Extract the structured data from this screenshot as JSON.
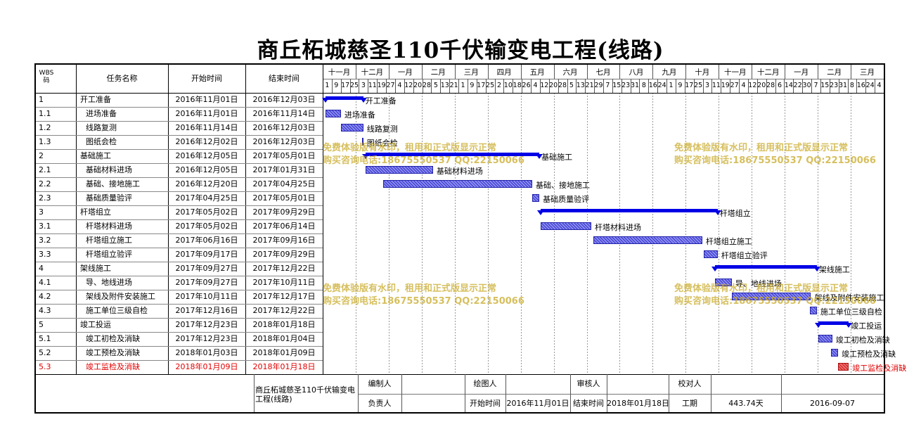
{
  "title": "商丘柘城慈圣110千伏输变电工程(线路)",
  "columns": {
    "wbs": "WBS码",
    "name": "任务名称",
    "start": "开始时间",
    "end": "结束时间"
  },
  "months": [
    "十一月",
    "十二月",
    "一月",
    "二月",
    "三月",
    "四月",
    "五月",
    "六月",
    "七月",
    "八月",
    "九月",
    "十月",
    "十一月",
    "十二月",
    "一月",
    "二月",
    "三月"
  ],
  "days": [
    "1",
    "9",
    "17",
    "25",
    "3",
    "11",
    "19",
    "27",
    "4",
    "12",
    "20",
    "28",
    "5",
    "13",
    "21",
    "1",
    "9",
    "17",
    "25",
    "2",
    "10",
    "18",
    "26",
    "4",
    "12",
    "20",
    "28",
    "5",
    "13",
    "21",
    "29",
    "7",
    "15",
    "23",
    "31",
    "8",
    "16",
    "24",
    "1",
    "9",
    "17",
    "25",
    "3",
    "11",
    "19",
    "27",
    "4",
    "12",
    "20",
    "28",
    "6",
    "14",
    "22",
    "30",
    "7",
    "15",
    "23",
    "31",
    "8",
    "16",
    "24",
    "4"
  ],
  "tasks": [
    {
      "wbs": "1",
      "name": "开工准备",
      "start": "2016年11月01日",
      "end": "2016年12月03日",
      "indent": 0,
      "kind": "summary",
      "s": 0,
      "e": 32
    },
    {
      "wbs": "1.1",
      "name": "进场准备",
      "start": "2016年11月01日",
      "end": "2016年11月14日",
      "indent": 1,
      "kind": "task",
      "s": 0,
      "e": 13
    },
    {
      "wbs": "1.2",
      "name": "线路复测",
      "start": "2016年11月14日",
      "end": "2016年12月03日",
      "indent": 1,
      "kind": "task",
      "s": 13,
      "e": 32
    },
    {
      "wbs": "1.3",
      "name": "图纸会检",
      "start": "2016年12月02日",
      "end": "2016年12月03日",
      "indent": 1,
      "kind": "milestone",
      "s": 31,
      "e": 32
    },
    {
      "wbs": "2",
      "name": "基础施工",
      "start": "2016年12月05日",
      "end": "2017年05月01日",
      "indent": 0,
      "kind": "summary",
      "s": 34,
      "e": 181
    },
    {
      "wbs": "2.1",
      "name": "基础材料进场",
      "start": "2016年12月05日",
      "end": "2017年01月31日",
      "indent": 1,
      "kind": "task",
      "s": 34,
      "e": 91
    },
    {
      "wbs": "2.2",
      "name": "基础、接地施工",
      "start": "2016年12月20日",
      "end": "2017年04月25日",
      "indent": 1,
      "kind": "task",
      "s": 49,
      "e": 175
    },
    {
      "wbs": "2.3",
      "name": "基础质量验评",
      "start": "2017年04月25日",
      "end": "2017年05月01日",
      "indent": 1,
      "kind": "task",
      "s": 175,
      "e": 181
    },
    {
      "wbs": "3",
      "name": "杆塔组立",
      "start": "2017年05月02日",
      "end": "2017年09月29日",
      "indent": 0,
      "kind": "summary",
      "s": 182,
      "e": 332
    },
    {
      "wbs": "3.1",
      "name": "杆塔材料进场",
      "start": "2017年05月02日",
      "end": "2017年06月14日",
      "indent": 1,
      "kind": "task",
      "s": 182,
      "e": 225
    },
    {
      "wbs": "3.2",
      "name": "杆塔组立施工",
      "start": "2017年06月16日",
      "end": "2017年09月16日",
      "indent": 1,
      "kind": "task",
      "s": 227,
      "e": 319
    },
    {
      "wbs": "3.3",
      "name": "杆塔组立验评",
      "start": "2017年09月17日",
      "end": "2017年09月29日",
      "indent": 1,
      "kind": "task",
      "s": 320,
      "e": 332
    },
    {
      "wbs": "4",
      "name": "架线施工",
      "start": "2017年09月27日",
      "end": "2017年12月22日",
      "indent": 0,
      "kind": "summary",
      "s": 330,
      "e": 416
    },
    {
      "wbs": "4.1",
      "name": "导、地线进场",
      "start": "2017年09月27日",
      "end": "2017年10月11日",
      "indent": 1,
      "kind": "task",
      "s": 330,
      "e": 344
    },
    {
      "wbs": "4.2",
      "name": "架线及附件安装施工",
      "start": "2017年10月11日",
      "end": "2017年12月17日",
      "indent": 1,
      "kind": "task",
      "s": 344,
      "e": 411
    },
    {
      "wbs": "4.3",
      "name": "施工单位三级自检",
      "start": "2017年12月16日",
      "end": "2017年12月22日",
      "indent": 1,
      "kind": "task",
      "s": 410,
      "e": 416
    },
    {
      "wbs": "5",
      "name": "竣工投运",
      "start": "2017年12月23日",
      "end": "2018年01月18日",
      "indent": 0,
      "kind": "summary",
      "s": 417,
      "e": 443
    },
    {
      "wbs": "5.1",
      "name": "竣工初检及消缺",
      "start": "2017年12月23日",
      "end": "2018年01月04日",
      "indent": 1,
      "kind": "task",
      "s": 417,
      "e": 429
    },
    {
      "wbs": "5.2",
      "name": "竣工预检及消缺",
      "start": "2018年01月03日",
      "end": "2018年01月09日",
      "indent": 1,
      "kind": "task",
      "s": 428,
      "e": 434
    },
    {
      "wbs": "5.3",
      "name": "竣工监检及消缺",
      "start": "2018年01月09日",
      "end": "2018年01月18日",
      "indent": 1,
      "kind": "critical",
      "s": 434,
      "e": 443
    }
  ],
  "footer": {
    "project": "商丘柘城慈圣110千伏输变电工程(线路)",
    "compiler_label": "编制人",
    "drawer_label": "绘图人",
    "reviewer_label": "审核人",
    "checker_label": "校对人",
    "owner_label": "负责人",
    "start_label": "开始时间",
    "start_value": "2016年11月01日",
    "end_label": "结束时间",
    "end_value": "2018年01月18日",
    "duration_label": "工期",
    "duration_value": "443.74天",
    "date": "2016-09-07"
  },
  "watermark": {
    "line1": "免费体验版有水印，租用和正式版显示正常",
    "line2": "购买咨询电话:18675550537 QQ:22150066"
  },
  "colors": {
    "summary": "#0000e6",
    "task": "#5050d8",
    "critical": "#e02020",
    "critical_text": "#e00000",
    "watermark": "#c8aa28"
  }
}
